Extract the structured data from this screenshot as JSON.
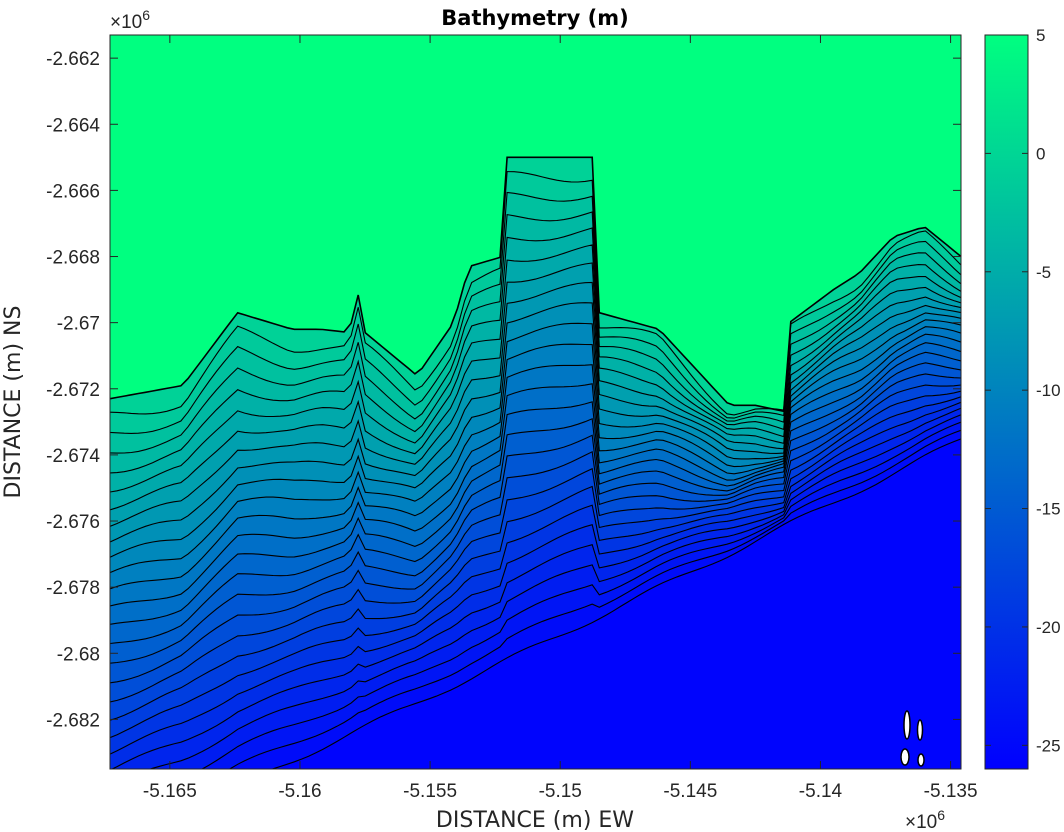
{
  "chart_data": {
    "type": "contour",
    "title": "Bathymetry (m)",
    "xlabel": "DISTANCE (m) EW",
    "ylabel": "DISTANCE (m) NS",
    "x_multiplier": "×10",
    "x_multiplier_exp": "6",
    "y_multiplier": "×10",
    "y_multiplier_exp": "6",
    "xlim": [
      -5.1673,
      -5.1346
    ],
    "ylim": [
      -2.6835,
      -2.6613
    ],
    "xticks": [
      -5.165,
      -5.16,
      -5.155,
      -5.15,
      -5.145,
      -5.14,
      -5.135
    ],
    "xtick_labels": [
      "-5.165",
      "-5.16",
      "-5.155",
      "-5.15",
      "-5.145",
      "-5.14",
      "-5.135"
    ],
    "yticks": [
      -2.662,
      -2.664,
      -2.666,
      -2.668,
      -2.67,
      -2.672,
      -2.674,
      -2.676,
      -2.678,
      -2.68,
      -2.682
    ],
    "ytick_labels": [
      "-2.662",
      "-2.664",
      "-2.666",
      "-2.668",
      "-2.67",
      "-2.672",
      "-2.674",
      "-2.676",
      "-2.678",
      "-2.68",
      "-2.682"
    ],
    "colorbar": {
      "clim": [
        -26,
        5
      ],
      "ticks": [
        5,
        0,
        -5,
        -10,
        -15,
        -20,
        -25
      ],
      "tick_labels": [
        "5",
        "0",
        "-5",
        "-10",
        "-15",
        "-20",
        "-25"
      ],
      "colormap": [
        "#0000ff",
        "#00ff80"
      ]
    },
    "shoreline": [
      [
        -5.1673,
        -2.6723
      ],
      [
        -5.1645,
        -2.6719
      ],
      [
        -5.1624,
        -2.6697
      ],
      [
        -5.1603,
        -2.6702
      ],
      [
        -5.1592,
        -2.6702
      ],
      [
        -5.1581,
        -2.6703
      ],
      [
        -5.1578,
        -2.669
      ],
      [
        -5.1575,
        -2.6703
      ],
      [
        -5.1555,
        -2.6716
      ],
      [
        -5.1541,
        -2.67
      ],
      [
        -5.1535,
        -2.6683
      ],
      [
        -5.1522,
        -2.668
      ],
      [
        -5.1521,
        -2.665
      ],
      [
        -5.1485,
        -2.665
      ],
      [
        -5.1485,
        -2.6697
      ],
      [
        -5.1462,
        -2.6702
      ],
      [
        -5.1435,
        -2.6725
      ],
      [
        -5.1425,
        -2.6725
      ],
      [
        -5.1413,
        -2.6727
      ],
      [
        -5.1412,
        -2.67
      ],
      [
        -5.1395,
        -2.669
      ],
      [
        -5.1385,
        -2.6685
      ],
      [
        -5.1372,
        -2.6674
      ],
      [
        -5.136,
        -2.6671
      ],
      [
        -5.1346,
        -2.668
      ]
    ],
    "contour_levels": [
      0,
      -1,
      -2,
      -3,
      -4,
      -5,
      -6,
      -7,
      -8,
      -9,
      -10,
      -11,
      -12,
      -13,
      -14,
      -15,
      -16,
      -17,
      -18,
      -19,
      -20,
      -21,
      -22,
      -23,
      -24,
      -25
    ]
  }
}
